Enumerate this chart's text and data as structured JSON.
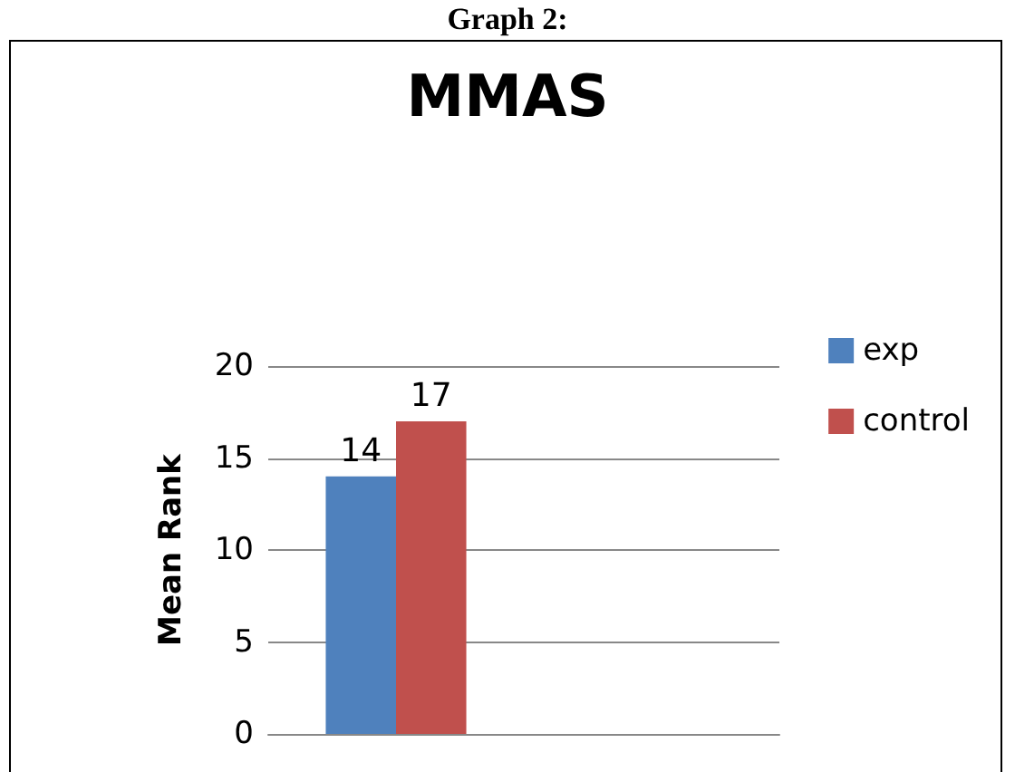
{
  "chart_data": {
    "type": "bar",
    "title": "MMAS",
    "annotations": [
      "Graph 2:"
    ],
    "ylabel": "Mean Rank",
    "categories": [
      null,
      null
    ],
    "series": [
      {
        "name": "exp",
        "color": "#4f81bd",
        "values": [
          14,
          null
        ]
      },
      {
        "name": "control",
        "color": "#c0504d",
        "values": [
          17,
          null
        ]
      }
    ],
    "ylim": [
      0,
      20
    ],
    "yticks": [
      0,
      5,
      10,
      15,
      20
    ],
    "grid": "y",
    "legend": "right",
    "data_labels": true
  }
}
